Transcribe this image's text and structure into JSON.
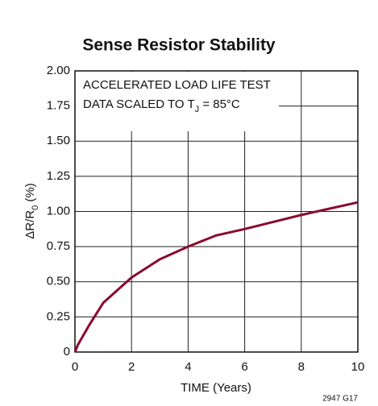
{
  "chart_data": {
    "type": "line",
    "title": "Sense Resistor Stability",
    "xlabel": "TIME (Years)",
    "ylabel": [
      "ΔR/R",
      "0",
      " (%)"
    ],
    "annotation": [
      [
        "ACCELERATED LOAD LIFE TEST"
      ],
      [
        "DATA SCALED TO T",
        "J",
        " = 85°C"
      ]
    ],
    "footnote": "2947 G17",
    "x": [
      0,
      0.1,
      0.5,
      1,
      2,
      3,
      4,
      5,
      6,
      7,
      8,
      9,
      10
    ],
    "series": [
      {
        "name": null,
        "color": "#8b0a2e",
        "values": [
          0,
          0.05,
          0.19,
          0.35,
          0.53,
          0.66,
          0.75,
          0.83,
          0.875,
          0.925,
          0.975,
          1.02,
          1.065
        ]
      }
    ],
    "xlim": [
      0,
      10
    ],
    "xticks": [
      0,
      2,
      4,
      6,
      8,
      10
    ],
    "ylim": [
      0,
      2
    ],
    "yticks": [
      0,
      0.25,
      {
        "value": 0.5,
        "label": "0.50"
      },
      0.75,
      {
        "value": 1,
        "label": "1.00"
      },
      1.25,
      {
        "value": 1.5,
        "label": "1.50"
      },
      1.75,
      {
        "value": 2,
        "label": "2.00"
      }
    ],
    "grid": true
  }
}
